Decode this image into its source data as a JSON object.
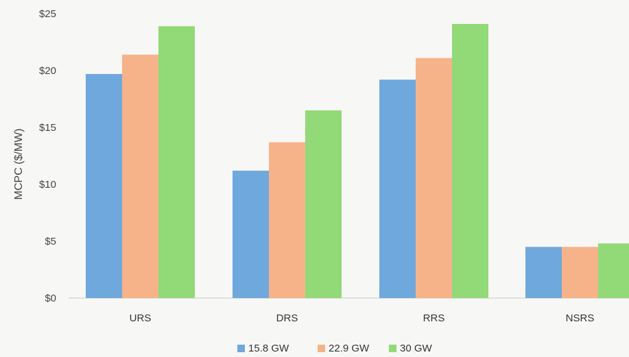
{
  "chart_data": {
    "type": "bar",
    "categories": [
      "URS",
      "DRS",
      "RRS",
      "NSRS"
    ],
    "series": [
      {
        "name": "15.8 GW",
        "color": "#6fa8dc",
        "values": [
          19.7,
          11.2,
          19.2,
          4.5
        ]
      },
      {
        "name": "22.9 GW",
        "color": "#f6b38a",
        "values": [
          21.4,
          13.7,
          21.1,
          4.5
        ]
      },
      {
        "name": "30 GW",
        "color": "#92d977",
        "values": [
          23.9,
          16.5,
          24.1,
          4.8
        ]
      }
    ],
    "ylabel": "MCPC ($/MW)",
    "yticks": [
      "$0",
      "$5",
      "$10",
      "$15",
      "$20",
      "$25"
    ],
    "ytick_values": [
      0,
      5,
      10,
      15,
      20,
      25
    ],
    "ylim": [
      0,
      25
    ],
    "legend_position": "bottom",
    "grid": false
  }
}
